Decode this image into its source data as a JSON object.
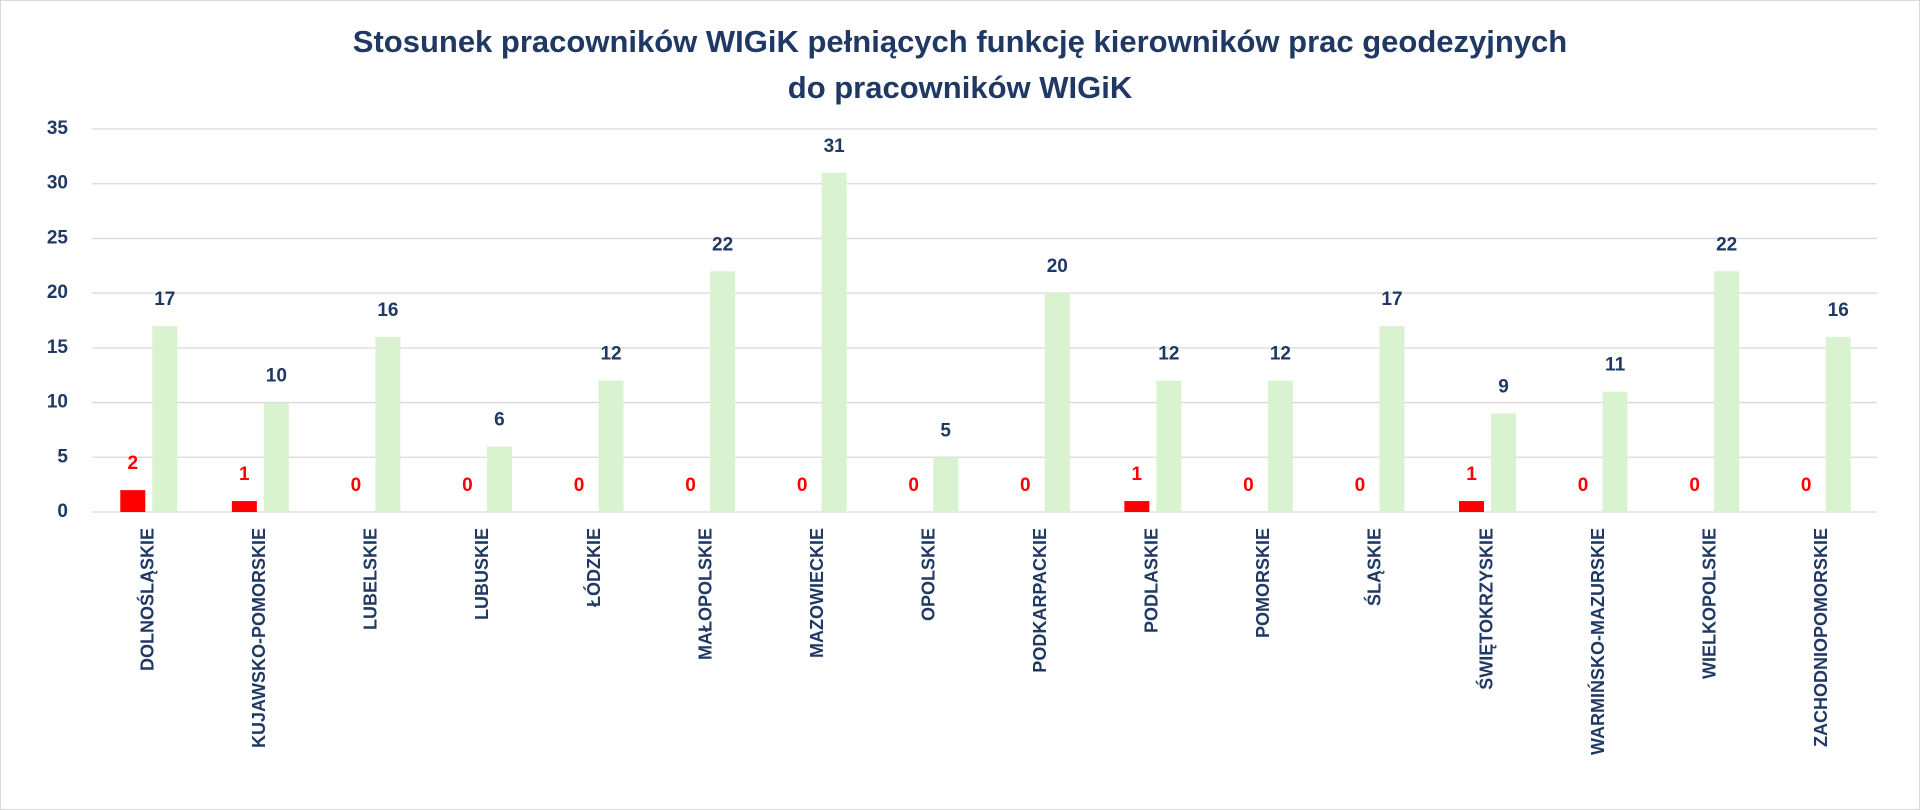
{
  "chart_data": {
    "type": "bar",
    "title": [
      "Stosunek pracowników WIGiK pełniących funkcję kierowników prac geodezyjnych",
      "do pracowników WIGiK"
    ],
    "categories": [
      "DOLNOŚLĄSKIE",
      "KUJAWSKO-POMORSKIE",
      "LUBELSKIE",
      "LUBUSKIE",
      "ŁÓDZKIE",
      "MAŁOPOLSKIE",
      "MAZOWIECKIE",
      "OPOLSKIE",
      "PODKARPACKIE",
      "PODLASKIE",
      "POMORSKIE",
      "ŚLĄSKIE",
      "ŚWIĘTOKRZYSKIE",
      "WARMIŃSKO-MAZURSKIE",
      "WIELKOPOLSKIE",
      "ZACHODNIOPOMORSKIE"
    ],
    "series": [
      {
        "color": "#ff0000",
        "label_color": "#ff0000",
        "values": [
          2,
          1,
          0,
          0,
          0,
          0,
          0,
          0,
          0,
          1,
          0,
          0,
          1,
          0,
          0,
          0
        ]
      },
      {
        "color": "#d9f2d0",
        "label_color": "#1f3864",
        "values": [
          17,
          10,
          16,
          6,
          12,
          22,
          31,
          5,
          20,
          12,
          12,
          17,
          9,
          11,
          22,
          16
        ]
      }
    ],
    "ylim": [
      0,
      35
    ],
    "yticks": [
      0,
      5,
      10,
      15,
      20,
      25,
      30,
      35
    ],
    "grid": true
  }
}
